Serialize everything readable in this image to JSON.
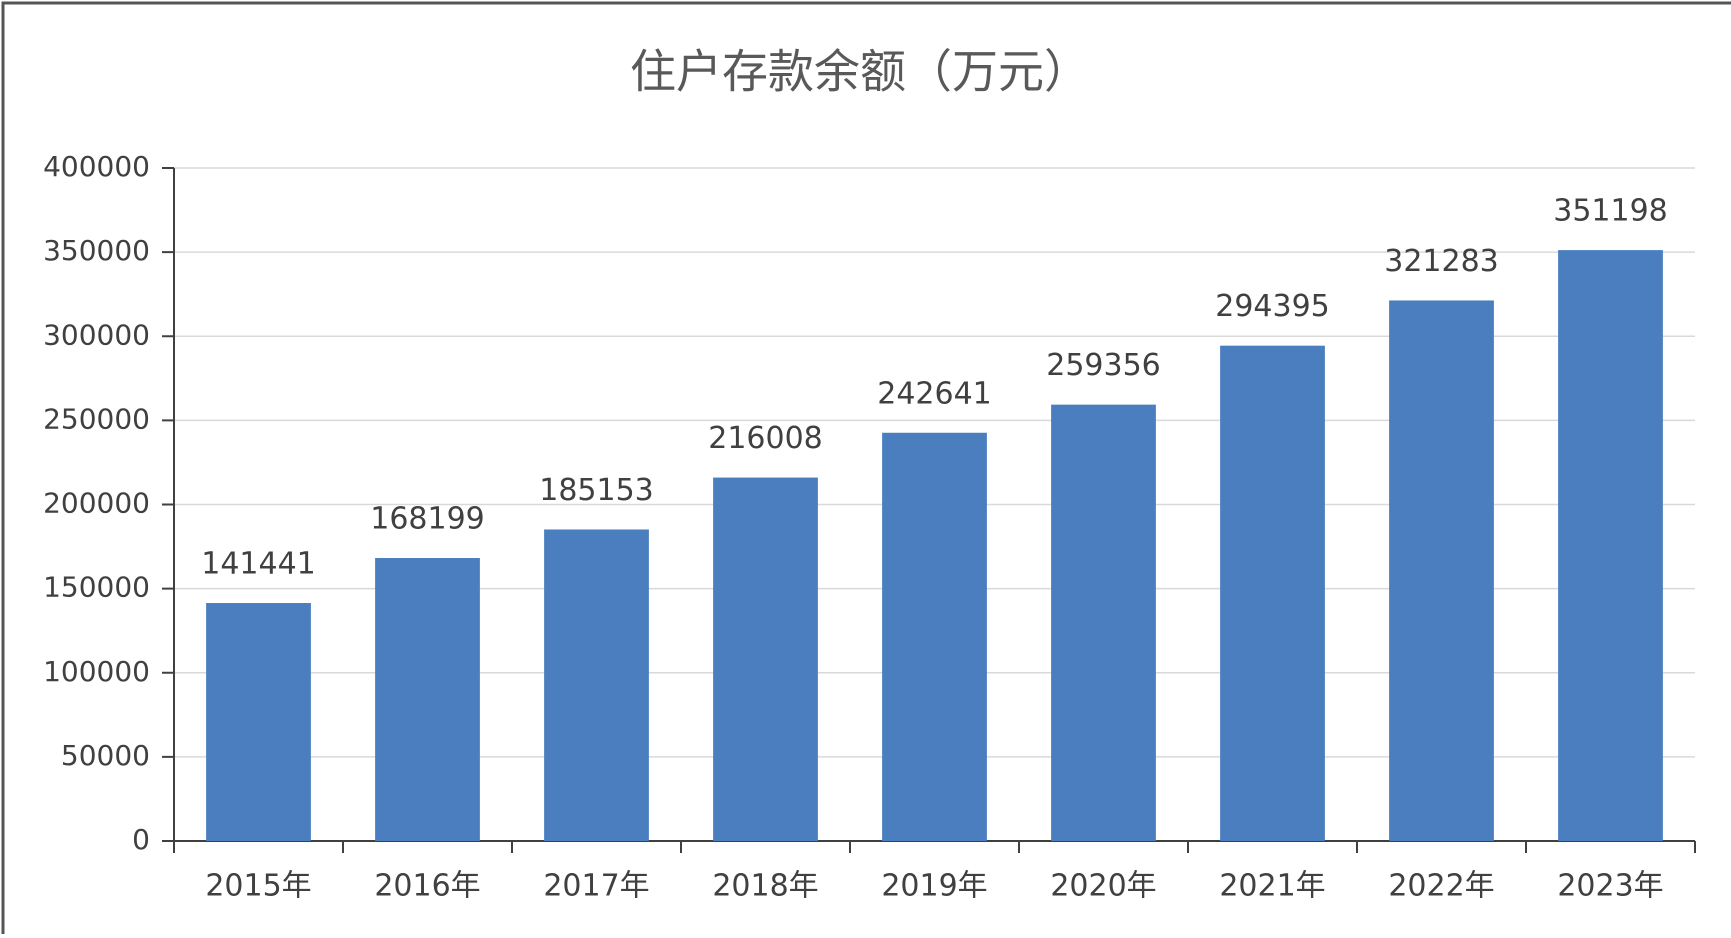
{
  "chart_data": {
    "type": "bar",
    "title": "住户存款余额（万元）",
    "categories": [
      "2015年",
      "2016年",
      "2017年",
      "2018年",
      "2019年",
      "2020年",
      "2021年",
      "2022年",
      "2023年"
    ],
    "values": [
      141441,
      168199,
      185153,
      216008,
      242641,
      259356,
      294395,
      321283,
      351198
    ],
    "color": "#4a7ebf",
    "ylim": [
      0,
      400000
    ],
    "yticks": [
      0,
      50000,
      100000,
      150000,
      200000,
      250000,
      300000,
      350000,
      400000
    ],
    "grid": true
  }
}
